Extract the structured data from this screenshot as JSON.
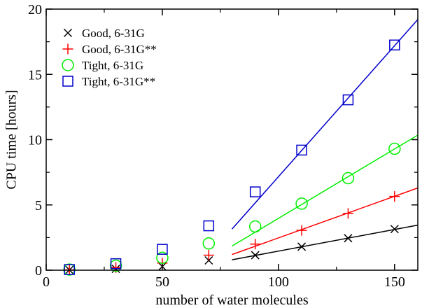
{
  "chart_data": {
    "type": "scatter",
    "xlabel": "number of water molecules",
    "ylabel": "CPU time [hours]",
    "xlim": [
      0,
      160
    ],
    "ylim": [
      0,
      20
    ],
    "x_ticks": [
      "0",
      "50",
      "100",
      "150"
    ],
    "y_ticks": [
      "0",
      "5",
      "10",
      "15",
      "20"
    ],
    "x": [
      10,
      30,
      50,
      70,
      90,
      110,
      130,
      150
    ],
    "legend_placement": "top-left",
    "grid": false,
    "series": [
      {
        "name": "Good, 6-31G",
        "marker": "x",
        "color": "#000000",
        "values": [
          0.02,
          0.1,
          0.28,
          0.75,
          1.15,
          1.8,
          2.45,
          3.15
        ],
        "fit": {
          "x": [
            80,
            160
          ],
          "y": [
            0.8,
            3.45
          ]
        }
      },
      {
        "name": "Good, 6-31G**",
        "marker": "+",
        "color": "#ff0000",
        "values": [
          0.02,
          0.2,
          0.55,
          1.15,
          2.0,
          3.05,
          4.35,
          5.65
        ],
        "fit": {
          "x": [
            80,
            160
          ],
          "y": [
            1.2,
            6.3
          ]
        }
      },
      {
        "name": "Tight, 6-31G",
        "marker": "circle",
        "color": "#00ee00",
        "values": [
          0.05,
          0.35,
          0.95,
          2.05,
          3.35,
          5.1,
          7.05,
          9.3
        ],
        "fit": {
          "x": [
            80,
            160
          ],
          "y": [
            1.85,
            10.35
          ]
        }
      },
      {
        "name": "Tight, 6-31G**",
        "marker": "square",
        "color": "#0000cc",
        "values": [
          0.05,
          0.5,
          1.6,
          3.4,
          6.0,
          9.2,
          13.05,
          17.25
        ],
        "fit": {
          "x": [
            80,
            160
          ],
          "y": [
            3.15,
            19.2
          ]
        }
      }
    ]
  }
}
